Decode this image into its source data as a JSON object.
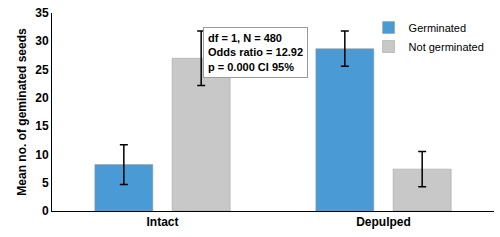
{
  "chart_data": {
    "type": "bar",
    "categories": [
      "Intact",
      "Depulped"
    ],
    "series": [
      {
        "name": "Germinated",
        "color": "#4a9ad6",
        "values": [
          8.2,
          28.7
        ],
        "error": [
          3.5,
          3.1
        ]
      },
      {
        "name": "Not germinated",
        "color": "#c8c8c8",
        "values": [
          27.0,
          7.4
        ],
        "error": [
          4.8,
          3.1
        ]
      }
    ],
    "y_label": "Mean no. of geminated seeds",
    "ylim": [
      0,
      35
    ],
    "yticks": [
      0,
      5,
      10,
      15,
      20,
      25,
      30,
      35
    ],
    "grid": false,
    "legend": "top right",
    "annotation": [
      "df = 1, N = 480",
      "Odds ratio = 12.92",
      "p = 0.000 CI 95%"
    ]
  }
}
